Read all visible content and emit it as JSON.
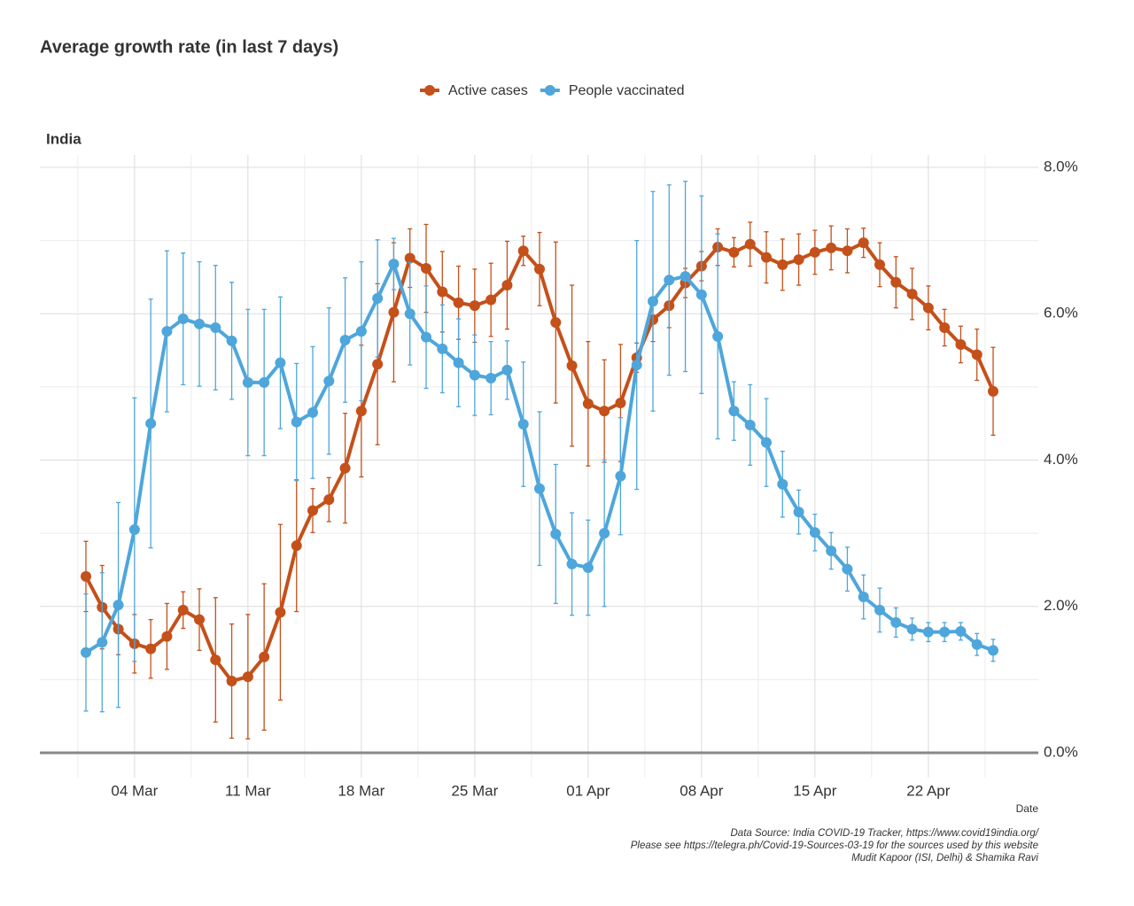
{
  "chart_data": {
    "type": "line",
    "title": "Average growth rate (in last 7 days)",
    "panel": "India",
    "xlabel": "Date",
    "caption": [
      "Data Source: India COVID-19 Tracker, https://www.covid19india.org/",
      "Please see https://telegra.ph/Covid-19-Sources-03-19 for the sources used by this website",
      "Mudit Kapoor (ISI, Delhi) & Shamika Ravi"
    ],
    "x": [
      "01 Mar",
      "02 Mar",
      "03 Mar",
      "04 Mar",
      "05 Mar",
      "06 Mar",
      "07 Mar",
      "08 Mar",
      "09 Mar",
      "10 Mar",
      "11 Mar",
      "12 Mar",
      "13 Mar",
      "14 Mar",
      "15 Mar",
      "16 Mar",
      "17 Mar",
      "18 Mar",
      "19 Mar",
      "20 Mar",
      "21 Mar",
      "22 Mar",
      "23 Mar",
      "24 Mar",
      "25 Mar",
      "26 Mar",
      "27 Mar",
      "28 Mar",
      "29 Mar",
      "30 Mar",
      "31 Mar",
      "01 Apr",
      "02 Apr",
      "03 Apr",
      "04 Apr",
      "05 Apr",
      "06 Apr",
      "07 Apr",
      "08 Apr",
      "09 Apr",
      "10 Apr",
      "11 Apr",
      "12 Apr",
      "13 Apr",
      "14 Apr",
      "15 Apr",
      "16 Apr",
      "17 Apr",
      "18 Apr",
      "19 Apr",
      "20 Apr",
      "21 Apr",
      "22 Apr",
      "23 Apr",
      "24 Apr",
      "25 Apr",
      "26 Apr"
    ],
    "xticks": [
      "04 Mar",
      "11 Mar",
      "18 Mar",
      "25 Mar",
      "01 Apr",
      "08 Apr",
      "15 Apr",
      "22 Apr"
    ],
    "ylim": [
      0,
      8
    ],
    "yticks": [
      {
        "value": 0,
        "label": "0.0%"
      },
      {
        "value": 2,
        "label": "2.0%"
      },
      {
        "value": 4,
        "label": "4.0%"
      },
      {
        "value": 6,
        "label": "6.0%"
      },
      {
        "value": 8,
        "label": "8.0%"
      }
    ],
    "grid": true,
    "legend": "top",
    "series": [
      {
        "name": "Active cases",
        "color": "#c4501a",
        "values": [
          2.41,
          1.99,
          1.69,
          1.49,
          1.42,
          1.59,
          1.95,
          1.82,
          1.27,
          0.98,
          1.04,
          1.31,
          1.92,
          2.83,
          3.31,
          3.46,
          3.89,
          4.67,
          5.31,
          6.02,
          6.76,
          6.62,
          6.3,
          6.15,
          6.11,
          6.19,
          6.39,
          6.86,
          6.61,
          5.88,
          5.29,
          4.77,
          4.67,
          4.78,
          5.4,
          5.92,
          6.11,
          6.42,
          6.65,
          6.91,
          6.84,
          6.95,
          6.77,
          6.67,
          6.74,
          6.84,
          6.9,
          6.86,
          6.97,
          6.67,
          6.43,
          6.27,
          6.08,
          5.81,
          5.58,
          5.44,
          4.94
        ],
        "errors": [
          0.48,
          0.57,
          0.35,
          0.4,
          0.4,
          0.45,
          0.25,
          0.42,
          0.85,
          0.78,
          0.85,
          1.0,
          1.2,
          0.9,
          0.3,
          0.3,
          0.75,
          0.9,
          1.1,
          0.95,
          0.4,
          0.6,
          0.55,
          0.5,
          0.5,
          0.5,
          0.6,
          0.2,
          0.5,
          1.1,
          1.1,
          0.85,
          0.7,
          0.8,
          0.2,
          0.3,
          0.3,
          0.2,
          0.2,
          0.25,
          0.2,
          0.3,
          0.35,
          0.35,
          0.35,
          0.3,
          0.3,
          0.3,
          0.2,
          0.3,
          0.35,
          0.35,
          0.3,
          0.25,
          0.25,
          0.35,
          0.6
        ]
      },
      {
        "name": "People vaccinated",
        "color": "#4ea6db",
        "values": [
          1.37,
          1.51,
          2.02,
          3.05,
          4.5,
          5.76,
          5.93,
          5.86,
          5.81,
          5.63,
          5.06,
          5.06,
          5.33,
          4.52,
          4.65,
          5.08,
          5.64,
          5.76,
          6.21,
          6.68,
          6.0,
          5.68,
          5.52,
          5.33,
          5.16,
          5.12,
          5.23,
          4.49,
          3.61,
          2.99,
          2.58,
          2.53,
          3.0,
          3.78,
          5.3,
          6.17,
          6.46,
          6.51,
          6.26,
          5.69,
          4.67,
          4.48,
          4.24,
          3.67,
          3.29,
          3.01,
          2.76,
          2.51,
          2.13,
          1.95,
          1.78,
          1.69,
          1.65,
          1.65,
          1.66,
          1.48,
          1.4
        ],
        "errors": [
          0.8,
          0.95,
          1.4,
          1.8,
          1.7,
          1.1,
          0.9,
          0.85,
          0.85,
          0.8,
          1.0,
          1.0,
          0.9,
          0.8,
          0.9,
          1.0,
          0.85,
          0.95,
          0.8,
          0.35,
          0.7,
          0.7,
          0.6,
          0.6,
          0.55,
          0.5,
          0.4,
          0.85,
          1.05,
          0.95,
          0.7,
          0.65,
          1.0,
          0.8,
          1.7,
          1.5,
          1.3,
          1.3,
          1.35,
          1.4,
          0.4,
          0.55,
          0.6,
          0.45,
          0.3,
          0.25,
          0.25,
          0.3,
          0.3,
          0.3,
          0.2,
          0.15,
          0.13,
          0.13,
          0.12,
          0.15,
          0.15
        ]
      }
    ]
  }
}
